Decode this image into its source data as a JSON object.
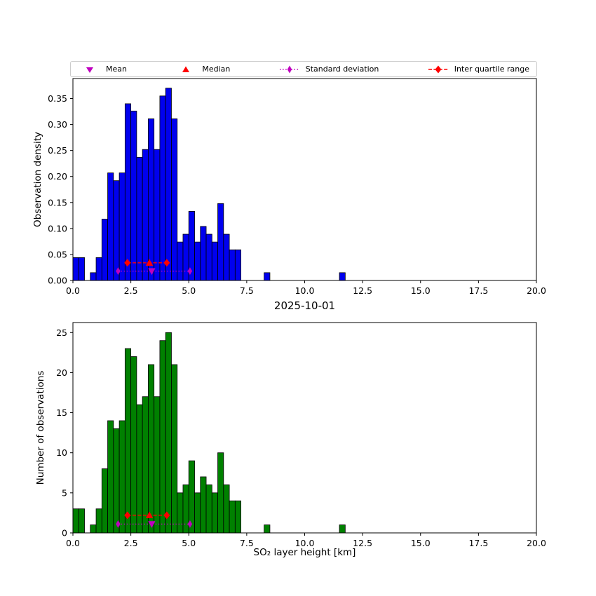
{
  "figure": {
    "background": "#ffffff"
  },
  "legend": {
    "items": [
      {
        "label": "Mean",
        "marker": "triangle-down",
        "color": "#bf00bf"
      },
      {
        "label": "Median",
        "marker": "triangle-up",
        "color": "#ff0000"
      },
      {
        "label": "Standard deviation",
        "marker": "std-line",
        "color": "#bf00bf"
      },
      {
        "label": "Inter quartile range",
        "marker": "iqr-line",
        "color": "#ff0000"
      }
    ]
  },
  "stats": {
    "mean": 3.4,
    "median": 3.3,
    "std_low": 1.95,
    "std_high": 5.05,
    "iqr_low": 2.35,
    "iqr_high": 4.05
  },
  "chart_data": [
    {
      "type": "bar",
      "kind": "histogram",
      "ylabel": "Observation density",
      "bin_start": 0,
      "bin_width": 0.25,
      "values": [
        0.044,
        0.044,
        0,
        0.015,
        0.044,
        0.118,
        0.207,
        0.192,
        0.207,
        0.34,
        0.326,
        0.237,
        0.252,
        0.311,
        0.252,
        0.355,
        0.37,
        0.311,
        0.074,
        0.089,
        0.133,
        0.074,
        0.104,
        0.089,
        0.074,
        0.148,
        0.089,
        0.059,
        0.059,
        0,
        0,
        0,
        0,
        0.015,
        0,
        0,
        0,
        0,
        0,
        0,
        0,
        0,
        0,
        0,
        0,
        0,
        0.015,
        0
      ],
      "xlim": [
        0,
        20
      ],
      "ylim": [
        0,
        0.3885
      ],
      "xticks": {
        "values": [
          0,
          2.5,
          5,
          7.5,
          10,
          12.5,
          15,
          17.5,
          20
        ],
        "labels": [
          "0.0",
          "2.5",
          "5.0",
          "7.5",
          "10.0",
          "12.5",
          "15.0",
          "17.5",
          "20.0"
        ]
      },
      "yticks": {
        "values": [
          0,
          0.05,
          0.1,
          0.15,
          0.2,
          0.25,
          0.3,
          0.35
        ],
        "labels": [
          "0.00",
          "0.05",
          "0.10",
          "0.15",
          "0.20",
          "0.25",
          "0.30",
          "0.35"
        ]
      },
      "bar_color": "#0000ee",
      "edge_color": "#000000",
      "marker_y": {
        "iqr": 0.034,
        "std": 0.018
      }
    },
    {
      "type": "bar",
      "kind": "histogram",
      "title": "2025-10-01",
      "ylabel": "Number of observations",
      "xlabel": "SO₂ layer height [km]",
      "bin_start": 0,
      "bin_width": 0.25,
      "values": [
        3,
        3,
        0,
        1,
        3,
        8,
        14,
        13,
        14,
        23,
        22,
        16,
        17,
        21,
        17,
        24,
        25,
        21,
        5,
        6,
        9,
        5,
        7,
        6,
        5,
        10,
        6,
        4,
        4,
        0,
        0,
        0,
        0,
        1,
        0,
        0,
        0,
        0,
        0,
        0,
        0,
        0,
        0,
        0,
        0,
        0,
        1,
        0
      ],
      "xlim": [
        0,
        20
      ],
      "ylim": [
        0,
        26.25
      ],
      "xticks": {
        "values": [
          0,
          2.5,
          5,
          7.5,
          10,
          12.5,
          15,
          17.5,
          20
        ],
        "labels": [
          "0.0",
          "2.5",
          "5.0",
          "7.5",
          "10.0",
          "12.5",
          "15.0",
          "17.5",
          "20.0"
        ]
      },
      "yticks": {
        "values": [
          0,
          5,
          10,
          15,
          20,
          25
        ],
        "labels": [
          "0",
          "5",
          "10",
          "15",
          "20",
          "25"
        ]
      },
      "bar_color": "#008000",
      "edge_color": "#000000",
      "marker_y": {
        "iqr": 2.2,
        "std": 1.1
      }
    }
  ]
}
